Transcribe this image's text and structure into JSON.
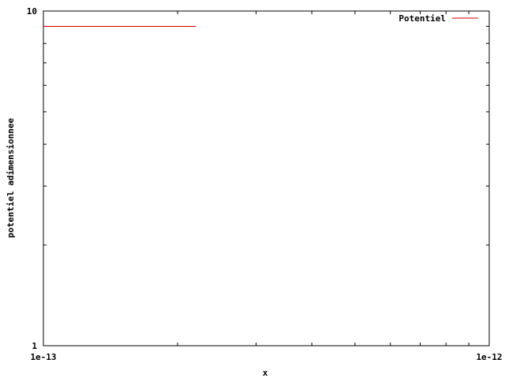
{
  "chart_data": {
    "type": "line",
    "title": "",
    "xlabel": "x",
    "ylabel": "potentiel adimensionnee",
    "xscale": "log",
    "yscale": "log",
    "xlim": [
      1e-13,
      1e-12
    ],
    "ylim": [
      1,
      10
    ],
    "grid": false,
    "legend_position": "top-right",
    "x_ticks": [
      {
        "value": 1e-13,
        "label": "1e-13"
      },
      {
        "value": 1e-12,
        "label": "1e-12"
      }
    ],
    "y_ticks": [
      {
        "value": 1,
        "label": "1"
      },
      {
        "value": 10,
        "label": "10"
      }
    ],
    "series": [
      {
        "name": "Potentiel",
        "color": "#cc0000",
        "points": [
          {
            "x": 1e-13,
            "y": 9.0
          },
          {
            "x": 2.2e-13,
            "y": 9.0
          }
        ]
      }
    ]
  }
}
